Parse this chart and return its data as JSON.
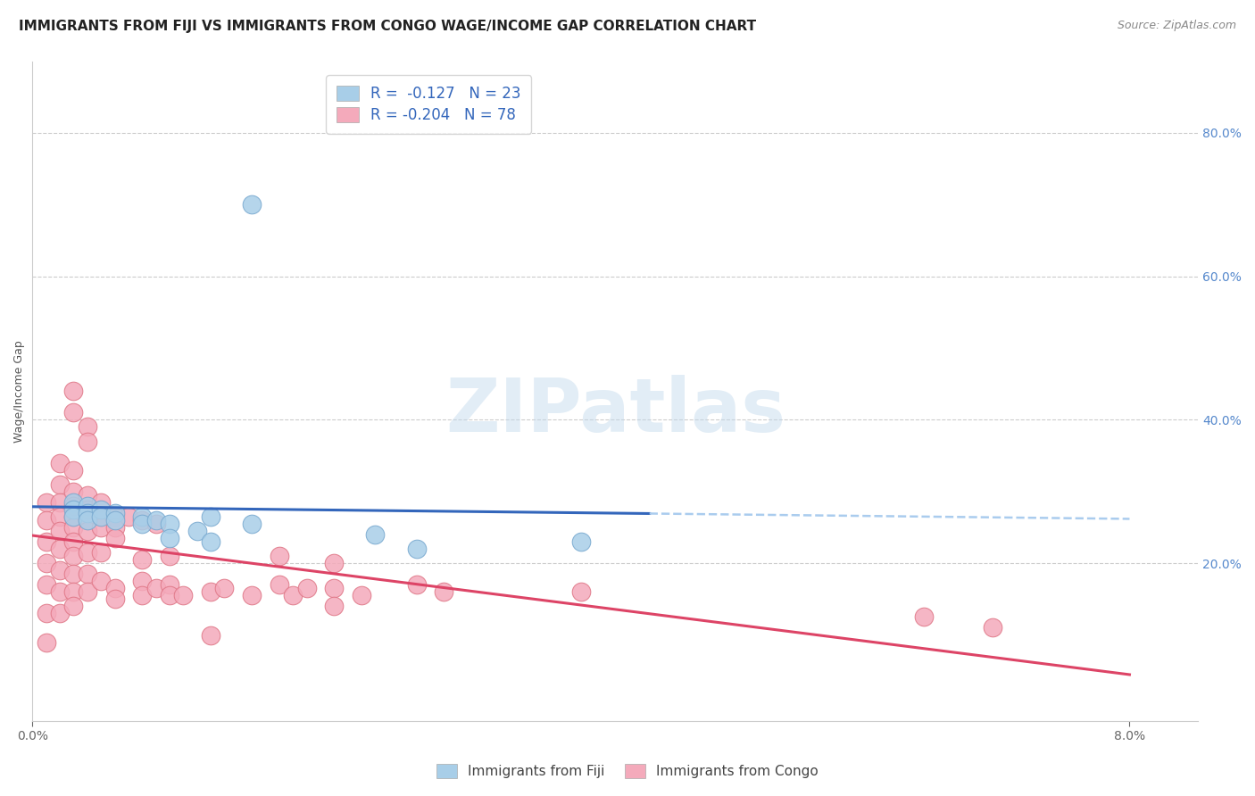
{
  "title": "IMMIGRANTS FROM FIJI VS IMMIGRANTS FROM CONGO WAGE/INCOME GAP CORRELATION CHART",
  "source": "Source: ZipAtlas.com",
  "ylabel": "Wage/Income Gap",
  "watermark": "ZIPatlas",
  "fiji_color": "#A8CEE8",
  "congo_color": "#F4AABB",
  "fiji_edge": "#7AAAD0",
  "congo_edge": "#E07888",
  "fiji_line_color": "#3366BB",
  "congo_line_color": "#DD4466",
  "dashed_line_color": "#AACCEE",
  "fiji_points": [
    [
      0.003,
      0.285
    ],
    [
      0.003,
      0.275
    ],
    [
      0.003,
      0.265
    ],
    [
      0.004,
      0.28
    ],
    [
      0.004,
      0.27
    ],
    [
      0.004,
      0.26
    ],
    [
      0.005,
      0.275
    ],
    [
      0.005,
      0.265
    ],
    [
      0.006,
      0.27
    ],
    [
      0.006,
      0.26
    ],
    [
      0.008,
      0.265
    ],
    [
      0.008,
      0.255
    ],
    [
      0.009,
      0.26
    ],
    [
      0.01,
      0.255
    ],
    [
      0.01,
      0.235
    ],
    [
      0.012,
      0.245
    ],
    [
      0.013,
      0.265
    ],
    [
      0.013,
      0.23
    ],
    [
      0.016,
      0.255
    ],
    [
      0.025,
      0.24
    ],
    [
      0.028,
      0.22
    ],
    [
      0.04,
      0.23
    ],
    [
      0.016,
      0.7
    ]
  ],
  "congo_points": [
    [
      0.001,
      0.285
    ],
    [
      0.001,
      0.26
    ],
    [
      0.001,
      0.23
    ],
    [
      0.001,
      0.2
    ],
    [
      0.001,
      0.17
    ],
    [
      0.001,
      0.13
    ],
    [
      0.001,
      0.09
    ],
    [
      0.002,
      0.34
    ],
    [
      0.002,
      0.31
    ],
    [
      0.002,
      0.285
    ],
    [
      0.002,
      0.265
    ],
    [
      0.002,
      0.245
    ],
    [
      0.002,
      0.22
    ],
    [
      0.002,
      0.19
    ],
    [
      0.002,
      0.16
    ],
    [
      0.002,
      0.13
    ],
    [
      0.003,
      0.44
    ],
    [
      0.003,
      0.41
    ],
    [
      0.003,
      0.33
    ],
    [
      0.003,
      0.3
    ],
    [
      0.003,
      0.28
    ],
    [
      0.003,
      0.265
    ],
    [
      0.003,
      0.25
    ],
    [
      0.003,
      0.23
    ],
    [
      0.003,
      0.21
    ],
    [
      0.003,
      0.185
    ],
    [
      0.003,
      0.16
    ],
    [
      0.003,
      0.14
    ],
    [
      0.004,
      0.39
    ],
    [
      0.004,
      0.37
    ],
    [
      0.004,
      0.295
    ],
    [
      0.004,
      0.275
    ],
    [
      0.004,
      0.26
    ],
    [
      0.004,
      0.245
    ],
    [
      0.004,
      0.215
    ],
    [
      0.004,
      0.185
    ],
    [
      0.004,
      0.16
    ],
    [
      0.005,
      0.285
    ],
    [
      0.005,
      0.265
    ],
    [
      0.005,
      0.25
    ],
    [
      0.005,
      0.215
    ],
    [
      0.005,
      0.175
    ],
    [
      0.006,
      0.265
    ],
    [
      0.006,
      0.25
    ],
    [
      0.006,
      0.235
    ],
    [
      0.006,
      0.165
    ],
    [
      0.006,
      0.15
    ],
    [
      0.007,
      0.265
    ],
    [
      0.008,
      0.26
    ],
    [
      0.008,
      0.205
    ],
    [
      0.008,
      0.175
    ],
    [
      0.008,
      0.155
    ],
    [
      0.009,
      0.255
    ],
    [
      0.009,
      0.165
    ],
    [
      0.01,
      0.21
    ],
    [
      0.01,
      0.17
    ],
    [
      0.01,
      0.155
    ],
    [
      0.011,
      0.155
    ],
    [
      0.013,
      0.16
    ],
    [
      0.013,
      0.1
    ],
    [
      0.014,
      0.165
    ],
    [
      0.016,
      0.155
    ],
    [
      0.018,
      0.21
    ],
    [
      0.018,
      0.17
    ],
    [
      0.019,
      0.155
    ],
    [
      0.02,
      0.165
    ],
    [
      0.022,
      0.2
    ],
    [
      0.022,
      0.165
    ],
    [
      0.022,
      0.14
    ],
    [
      0.024,
      0.155
    ],
    [
      0.028,
      0.17
    ],
    [
      0.03,
      0.16
    ],
    [
      0.04,
      0.16
    ],
    [
      0.065,
      0.125
    ],
    [
      0.07,
      0.11
    ]
  ],
  "xlim": [
    0.0,
    0.085
  ],
  "ylim": [
    -0.02,
    0.9
  ],
  "xticks": [
    0.0,
    0.08
  ],
  "xtick_labels": [
    "0.0%",
    "8.0%"
  ],
  "yticks_right": [
    0.2,
    0.4,
    0.6,
    0.8
  ],
  "ytick_labels_right": [
    "20.0%",
    "40.0%",
    "60.0%",
    "80.0%"
  ],
  "title_fontsize": 11,
  "axis_label_fontsize": 9,
  "tick_fontsize": 10,
  "source_fontsize": 9
}
